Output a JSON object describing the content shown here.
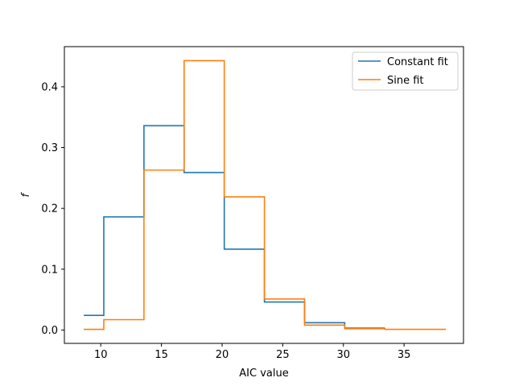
{
  "chart_data": {
    "type": "line",
    "style": "step-histogram",
    "title": "",
    "xlabel": "AIC value",
    "ylabel": "f",
    "xlim": [
      7.0,
      39.9
    ],
    "ylim": [
      -0.022,
      0.466
    ],
    "xticks": [
      10,
      15,
      20,
      25,
      30,
      35
    ],
    "yticks": [
      0.0,
      0.1,
      0.2,
      0.3,
      0.4
    ],
    "ytick_labels": [
      "0.0",
      "0.1",
      "0.2",
      "0.3",
      "0.4"
    ],
    "grid": false,
    "legend_position": "top-right",
    "series": [
      {
        "name": "Constant fit",
        "color": "#1f77b4",
        "bin_edges": [
          8.6,
          10.25,
          13.56,
          16.87,
          20.18,
          23.49,
          26.8,
          30.11,
          33.42
        ],
        "values": [
          0.024,
          0.186,
          0.336,
          0.259,
          0.133,
          0.046,
          0.012,
          0.003
        ]
      },
      {
        "name": "Sine fit",
        "color": "#ff7f0e",
        "bin_edges": [
          8.6,
          10.25,
          13.56,
          16.87,
          20.18,
          23.49,
          26.8,
          30.11,
          33.42,
          38.45
        ],
        "values": [
          0.001,
          0.017,
          0.263,
          0.443,
          0.219,
          0.051,
          0.008,
          0.002,
          0.001
        ]
      }
    ]
  }
}
